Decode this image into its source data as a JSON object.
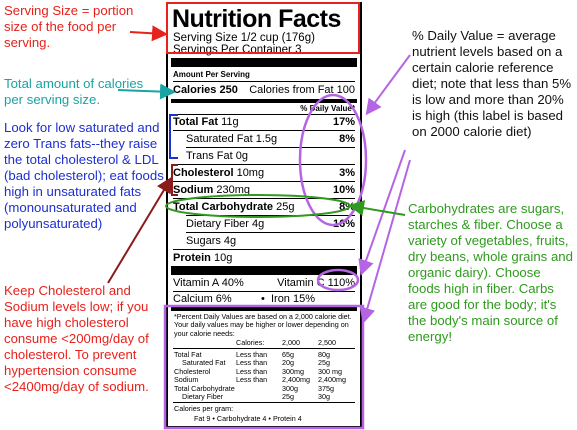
{
  "label": {
    "title": "Nutrition Facts",
    "serving_size": "Serving Size 1/2 cup (176g)",
    "servings_per_container": "Servings Per Container 3",
    "amount_per_serving": "Amount Per Serving",
    "calories": "Calories 250",
    "calories_fat": "Calories from Fat 100",
    "dv_header": "% Daily Value*",
    "nutrients": [
      {
        "name": "Total Fat 11g",
        "dv": "17%"
      },
      {
        "name": "Saturated Fat 1.5g",
        "dv": "8%"
      },
      {
        "name": "Trans Fat 0g",
        "dv": ""
      },
      {
        "name": "Cholesterol 10mg",
        "dv": "3%"
      },
      {
        "name": "Sodium 230mg",
        "dv": "10%"
      },
      {
        "name": "Total Carbohydrate 25g",
        "dv": "8%"
      },
      {
        "name": "Dietary Fiber 4g",
        "dv": "16%"
      },
      {
        "name": "Sugars 4g",
        "dv": ""
      },
      {
        "name": "Protein 10g",
        "dv": ""
      }
    ],
    "vitamin_a": "Vitamin A 40%",
    "vitamin_c": "Vitamin C 110%",
    "calcium": "Calcium 6%",
    "iron": "Iron 15%",
    "footnote": "*Percent Daily Values are based on a 2,000 calorie diet. Your daily values may be higher or lower depending on your calorie needs:",
    "table_header": [
      "",
      "Calories:",
      "2,000",
      "2,500"
    ],
    "table_rows": [
      [
        "Total Fat",
        "Less than",
        "65g",
        "80g"
      ],
      [
        "Saturated Fat",
        "Less than",
        "20g",
        "25g"
      ],
      [
        "Cholesterol",
        "Less than",
        "300mg",
        "300 mg"
      ],
      [
        "Sodium",
        "Less than",
        "2,400mg",
        "2,400mg"
      ],
      [
        "Total Carbohydrate",
        "",
        "300g",
        "375g"
      ],
      [
        "Dietary Fiber",
        "",
        "25g",
        "30g"
      ]
    ],
    "calories_per_gram": "Calories per gram:",
    "calories_per_gram_values": "Fat 9  •  Carbohydrate 4  •  Protein 4"
  },
  "annotations": {
    "serving": "Serving Size = portion size of the food per serving.",
    "calories": "Total amount of calories per serving size.",
    "fats": "Look for low saturated and zero Trans fats--they raise the total cholesterol & LDL (bad cholesterol); eat foods high in unsaturated fats (monounsaturated and polyunsaturated)",
    "cholesterol": "Keep Cholesterol and Sodium levels low; if you have high cholesterol consume <200mg/day of cholesterol.  To prevent hypertension consume <2400mg/day of sodium.",
    "daily_value": "% Daily Value = average nutrient levels based on a certain calorie reference diet; note that less than 5% is low and more than 20% is high (this label is based on 2000 calorie diet)",
    "carbs": "Carbohydrates are sugars, starches & fiber.  Choose a variety of vegetables, fruits, dry beans, whole grains and organic dairy).  Choose foods high in fiber. Carbs are good for the body; it's the body's main source of energy!"
  },
  "colors": {
    "red": "#e8211b",
    "teal": "#1aa3a3",
    "blue": "#1d2fcf",
    "green": "#2f9a1e",
    "purple": "#b565e3",
    "maroon": "#8b1a1a"
  }
}
